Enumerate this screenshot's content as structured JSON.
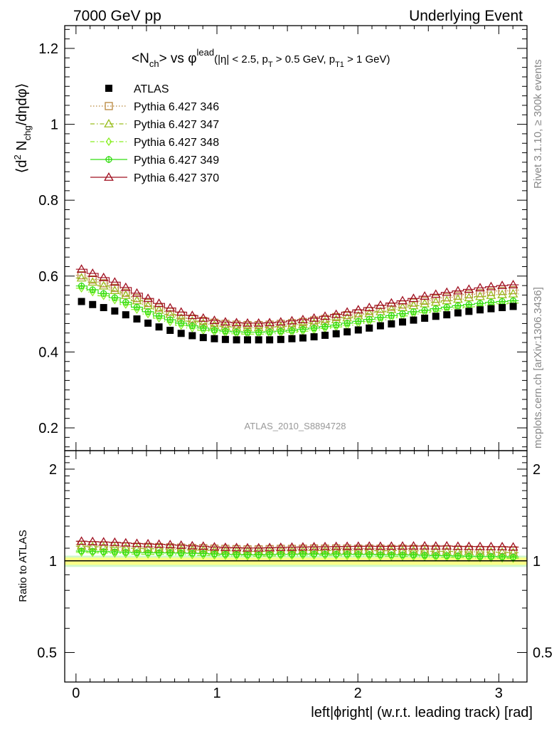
{
  "header": {
    "left": "7000 GeV pp",
    "right": "Underlying Event"
  },
  "side_labels": {
    "rivet": "Rivet 3.1.10, ≥ 300k events",
    "mcplots": "mcplots.cern.ch [arXiv:1306.3436]"
  },
  "plot_title": {
    "main_a": "<N",
    "main_sub": "ch",
    "main_b": "> vs φ",
    "main_sup": "lead",
    "cut_a": "(|η| < 2.5, p",
    "cut_sub1": "T",
    "cut_b": " > 0.5 GeV, p",
    "cut_sub2": "T1",
    "cut_c": " > 1 GeV)"
  },
  "watermark": "ATLAS_2010_S8894728",
  "ylabel_parts": {
    "a": "⟨d",
    "sup": "2",
    "b": " N",
    "sub": "chg",
    "c": "/dηdφ⟩"
  },
  "ratio_ylabel": "Ratio to ATLAS",
  "xlabel": "left|ϕright| (w.r.t. leading track) [rad]",
  "colors": {
    "data": "#000000",
    "band_inner": "#ffff80",
    "band_outer": "#a8f0a0",
    "s346": "#b8863b",
    "s347": "#9abe1f",
    "s348": "#88ee22",
    "s349": "#33dd11",
    "s370": "#a01020"
  },
  "chart_data": {
    "type": "scatter",
    "x": [
      0.039,
      0.118,
      0.196,
      0.275,
      0.353,
      0.432,
      0.511,
      0.589,
      0.668,
      0.746,
      0.825,
      0.903,
      0.982,
      1.06,
      1.139,
      1.217,
      1.296,
      1.374,
      1.453,
      1.532,
      1.61,
      1.689,
      1.767,
      1.846,
      1.924,
      2.003,
      2.081,
      2.16,
      2.238,
      2.317,
      2.395,
      2.474,
      2.553,
      2.631,
      2.71,
      2.788,
      2.867,
      2.945,
      3.024,
      3.102
    ],
    "xlim": [
      -0.08,
      3.2
    ],
    "ylim": [
      0.14,
      1.26
    ],
    "xticks": [
      "0",
      "1",
      "2",
      "3"
    ],
    "yticks": [
      "0.2",
      "0.4",
      "0.6",
      "0.8",
      "1",
      "1.2"
    ],
    "ratio_ylim": [
      0.4,
      2.3
    ],
    "ratio_yticks": [
      "0.5",
      "1",
      "2"
    ],
    "series": [
      {
        "name": "ATLAS",
        "key": "data",
        "marker": "square",
        "values": [
          0.533,
          0.525,
          0.517,
          0.508,
          0.498,
          0.487,
          0.476,
          0.466,
          0.457,
          0.449,
          0.443,
          0.438,
          0.435,
          0.433,
          0.432,
          0.432,
          0.432,
          0.432,
          0.433,
          0.435,
          0.437,
          0.44,
          0.444,
          0.448,
          0.453,
          0.458,
          0.463,
          0.469,
          0.474,
          0.479,
          0.484,
          0.489,
          0.494,
          0.498,
          0.503,
          0.507,
          0.511,
          0.514,
          0.517,
          0.52
        ]
      },
      {
        "name": "Pythia 6.427 346",
        "key": "s346",
        "marker": "open-square",
        "dash": "dotted",
        "values": [
          0.602,
          0.591,
          0.581,
          0.569,
          0.556,
          0.542,
          0.529,
          0.517,
          0.506,
          0.496,
          0.488,
          0.482,
          0.477,
          0.474,
          0.472,
          0.471,
          0.471,
          0.472,
          0.474,
          0.476,
          0.479,
          0.483,
          0.487,
          0.492,
          0.497,
          0.502,
          0.508,
          0.514,
          0.519,
          0.525,
          0.53,
          0.535,
          0.54,
          0.544,
          0.548,
          0.552,
          0.555,
          0.558,
          0.561,
          0.563
        ]
      },
      {
        "name": "Pythia 6.427 347",
        "key": "s347",
        "marker": "open-triangle",
        "dash": "dashdot",
        "values": [
          0.595,
          0.584,
          0.574,
          0.562,
          0.549,
          0.535,
          0.522,
          0.51,
          0.499,
          0.489,
          0.481,
          0.475,
          0.47,
          0.467,
          0.465,
          0.464,
          0.464,
          0.465,
          0.467,
          0.469,
          0.472,
          0.476,
          0.48,
          0.485,
          0.49,
          0.495,
          0.501,
          0.506,
          0.512,
          0.517,
          0.522,
          0.527,
          0.531,
          0.535,
          0.539,
          0.543,
          0.546,
          0.549,
          0.551,
          0.553
        ]
      },
      {
        "name": "Pythia 6.427 348",
        "key": "s348",
        "marker": "open-diamond",
        "dash": "dashdot",
        "values": [
          0.568,
          0.558,
          0.548,
          0.537,
          0.525,
          0.512,
          0.5,
          0.489,
          0.479,
          0.47,
          0.463,
          0.457,
          0.453,
          0.45,
          0.448,
          0.447,
          0.447,
          0.448,
          0.45,
          0.452,
          0.455,
          0.458,
          0.462,
          0.466,
          0.47,
          0.475,
          0.48,
          0.485,
          0.49,
          0.495,
          0.5,
          0.504,
          0.508,
          0.512,
          0.516,
          0.519,
          0.522,
          0.525,
          0.527,
          0.529
        ]
      },
      {
        "name": "Pythia 6.427 349",
        "key": "s349",
        "marker": "open-circle",
        "dash": "solid",
        "values": [
          0.574,
          0.564,
          0.554,
          0.543,
          0.531,
          0.518,
          0.506,
          0.495,
          0.485,
          0.476,
          0.469,
          0.463,
          0.458,
          0.455,
          0.453,
          0.452,
          0.452,
          0.453,
          0.455,
          0.457,
          0.46,
          0.463,
          0.467,
          0.471,
          0.476,
          0.481,
          0.486,
          0.491,
          0.496,
          0.501,
          0.506,
          0.51,
          0.514,
          0.518,
          0.522,
          0.525,
          0.528,
          0.531,
          0.533,
          0.535
        ]
      },
      {
        "name": "Pythia 6.427 370",
        "key": "s370",
        "marker": "open-triangle",
        "dash": "solid",
        "values": [
          0.618,
          0.607,
          0.596,
          0.584,
          0.57,
          0.555,
          0.541,
          0.528,
          0.516,
          0.505,
          0.496,
          0.489,
          0.483,
          0.479,
          0.477,
          0.476,
          0.476,
          0.477,
          0.479,
          0.482,
          0.485,
          0.489,
          0.494,
          0.499,
          0.505,
          0.511,
          0.517,
          0.523,
          0.529,
          0.535,
          0.541,
          0.547,
          0.552,
          0.557,
          0.561,
          0.565,
          0.569,
          0.572,
          0.575,
          0.577
        ]
      }
    ]
  }
}
